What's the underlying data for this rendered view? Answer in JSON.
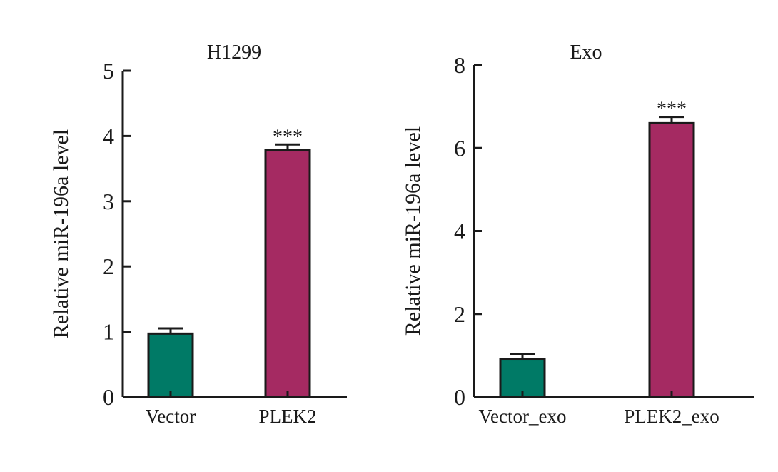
{
  "chart_data": [
    {
      "type": "bar",
      "title": "H1299",
      "xlabel": "",
      "ylabel": "Relative miR-196a level",
      "ylim": [
        0,
        5
      ],
      "yticks": [
        "0",
        "1",
        "2",
        "3",
        "4",
        "5"
      ],
      "categories": [
        "Vector",
        "PLEK2"
      ],
      "values": [
        0.97,
        3.78
      ],
      "errors": [
        0.08,
        0.09
      ],
      "colors": [
        "#007a66",
        "#a52a62"
      ],
      "significance": [
        "",
        "***"
      ]
    },
    {
      "type": "bar",
      "title": "Exo",
      "xlabel": "",
      "ylabel": "Relative miR-196a level",
      "ylim": [
        0,
        8
      ],
      "yticks": [
        "0",
        "2",
        "4",
        "6",
        "8"
      ],
      "categories": [
        "Vector_exo",
        "PLEK2_exo"
      ],
      "values": [
        0.92,
        6.6
      ],
      "errors": [
        0.12,
        0.15
      ],
      "colors": [
        "#007a66",
        "#a52a62"
      ],
      "significance": [
        "",
        "***"
      ]
    }
  ]
}
